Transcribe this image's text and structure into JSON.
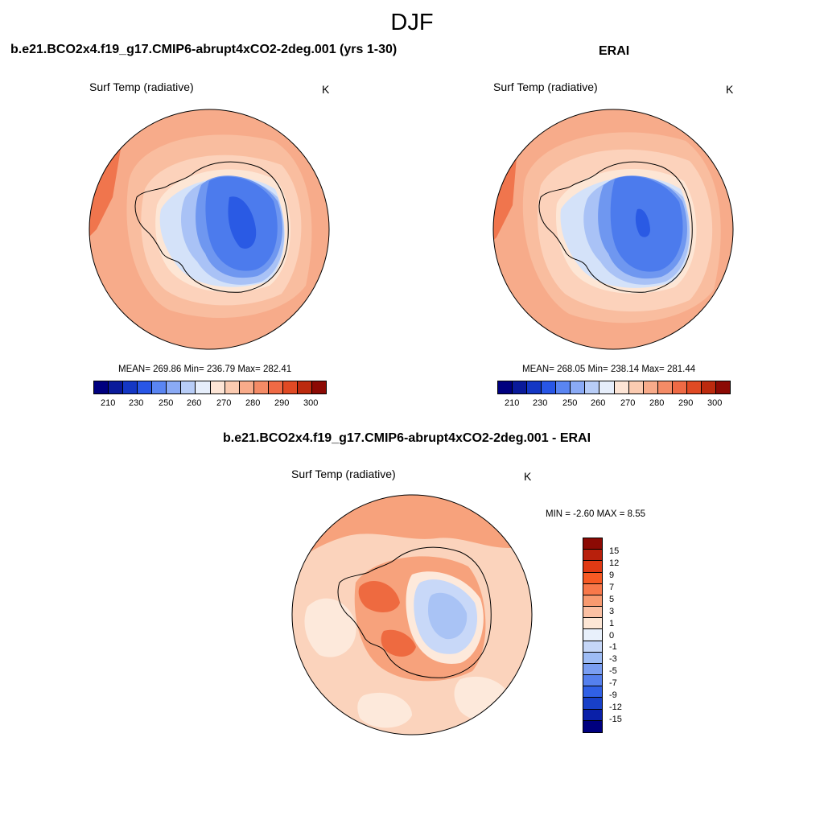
{
  "season": "DJF",
  "panels": [
    {
      "id": "model",
      "title": "b.e21.BCO2x4.f19_g17.CMIP6-abrupt4xCO2-2deg.001 (yrs 1-30)",
      "variable": "Surf Temp (radiative)",
      "units": "K",
      "stats": "MEAN= 269.86  Min= 236.79  Max= 282.41"
    },
    {
      "id": "obs",
      "title": "ERAI",
      "variable": "Surf Temp (radiative)",
      "units": "K",
      "stats": "MEAN= 268.05  Min= 238.14  Max= 281.44"
    },
    {
      "id": "diff",
      "title": "b.e21.BCO2x4.f19_g17.CMIP6-abrupt4xCO2-2deg.001 - ERAI",
      "variable": "Surf Temp (radiative)",
      "units": "K",
      "stats": "MIN =  -2.60 MAX =   8.55"
    }
  ],
  "colorbar_abs": {
    "colors": [
      "#00007f",
      "#0a1a9a",
      "#1437c4",
      "#2856e6",
      "#5a85f2",
      "#8aaaf5",
      "#b8cdf7",
      "#e6eefb",
      "#fde5d6",
      "#fbcbb1",
      "#f8ab8a",
      "#f48b66",
      "#ef6a45",
      "#e04a24",
      "#bc2a0e",
      "#8c0a04"
    ],
    "tick_labels": [
      "210",
      "230",
      "250",
      "260",
      "270",
      "280",
      "290",
      "300"
    ]
  },
  "colorbar_diff": {
    "colors": [
      "#8c0a04",
      "#b8200c",
      "#e03a14",
      "#f75a24",
      "#f8784a",
      "#f89a70",
      "#fbc0a3",
      "#fde6d5",
      "#e8f0fb",
      "#c5d6f7",
      "#9ebcf5",
      "#7a9ef2",
      "#5580ee",
      "#3060e6",
      "#1840c8",
      "#0a20a8",
      "#00007f"
    ],
    "tick_labels": [
      "15",
      "12",
      "9",
      "7",
      "5",
      "3",
      "1",
      "0",
      "-1",
      "-3",
      "-5",
      "-7",
      "-9",
      "-12",
      "-15"
    ]
  },
  "map_colors": {
    "warm_outer": "#f7ab8a",
    "warm_mid": "#f9bd9f",
    "warm_light": "#fcd2bb",
    "warm_strong": "#f0754d",
    "pale": "#fde6d5",
    "ice_light": "#d4e2f9",
    "ice_mid": "#a9c2f6",
    "ice_blue": "#6f97f0",
    "ice_deep": "#4c7bed",
    "ice_core": "#2a5ae4",
    "diff_base": "#fbd3bc",
    "diff_warm": "#f7a27c",
    "diff_hot": "#ee6a40",
    "diff_pale": "#fde9db",
    "diff_cool": "#c8d8f8",
    "diff_cool2": "#a9c3f5"
  }
}
